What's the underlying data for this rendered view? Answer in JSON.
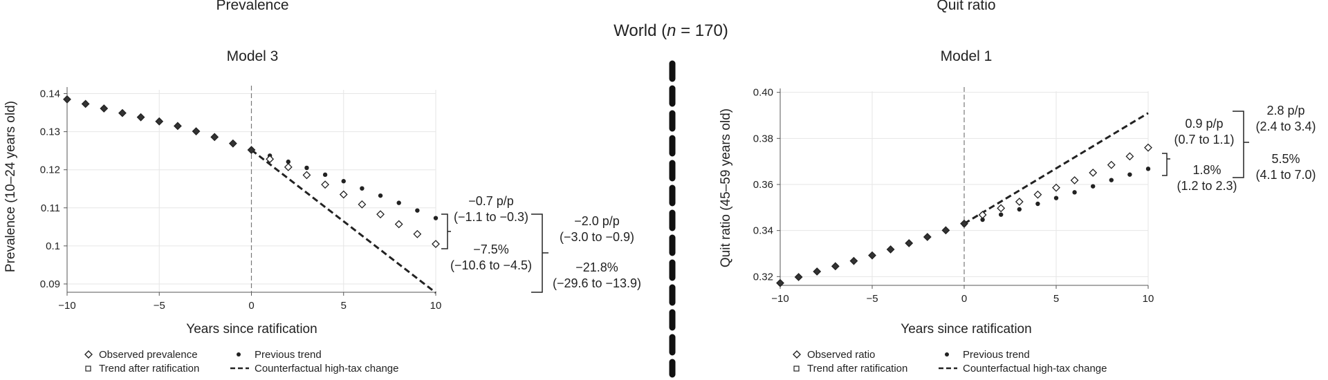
{
  "center_title": "World (n = 170)",
  "center_title_parts": [
    "World (",
    "n",
    " = 170)"
  ],
  "chart_data": [
    {
      "type": "scatter",
      "panel_title": "Prevalence",
      "model": "Model 3",
      "xlabel": "Years since ratification",
      "ylabel": "Prevalence (10–24 years old)",
      "xlim": [
        -10,
        10
      ],
      "ylim": [
        0.088,
        0.141
      ],
      "xticks": [
        -10,
        -5,
        0,
        5,
        10
      ],
      "xtick_labels": [
        "−10",
        "−5",
        "0",
        "5",
        "10"
      ],
      "yticks": [
        0.09,
        0.1,
        0.11,
        0.12,
        0.13,
        0.14
      ],
      "ytick_labels": [
        "0.09",
        "0.1",
        "0.11",
        "0.12",
        "0.13",
        "0.14"
      ],
      "grid": true,
      "legend_position": "bottom",
      "x": [
        -10,
        -9,
        -8,
        -7,
        -6,
        -5,
        -4,
        -3,
        -2,
        -1,
        0,
        1,
        2,
        3,
        4,
        5,
        6,
        7,
        8,
        9,
        10
      ],
      "series": [
        {
          "name": "Observed prevalence",
          "marker": "diamond",
          "values": [
            0.1385,
            0.1373,
            0.1361,
            0.1349,
            0.1338,
            0.1327,
            0.1315,
            0.1301,
            0.1286,
            0.1269,
            0.1252,
            0.1228,
            0.1207,
            0.1186,
            0.1161,
            0.1135,
            0.1109,
            0.1083,
            0.1057,
            0.1031,
            0.1005
          ]
        },
        {
          "name": "Trend after ratification",
          "marker": "square",
          "values": [
            0.1385,
            0.1373,
            0.1361,
            0.1349,
            0.1338,
            0.1327,
            0.1315,
            0.1301,
            0.1286,
            0.1269,
            0.1252,
            0.1228,
            0.1207,
            0.1186,
            0.1161,
            0.1135,
            0.1109,
            0.1083,
            0.1057,
            0.1031,
            0.1005
          ]
        },
        {
          "name": "Previous trend",
          "marker": "dot",
          "values": [
            null,
            null,
            null,
            null,
            null,
            null,
            null,
            null,
            null,
            null,
            0.125,
            0.1237,
            0.1221,
            0.1205,
            0.1187,
            0.117,
            0.1151,
            0.1132,
            0.1113,
            0.1093,
            0.1073
          ]
        },
        {
          "name": "Counterfactual high-tax change",
          "marker": "dashed-line",
          "x": [
            0,
            10
          ],
          "values": [
            0.1252,
            0.0877
          ]
        }
      ],
      "annotations": [
        {
          "line1": "−0.7 p/p",
          "line2": "(−1.1 to −0.3)"
        },
        {
          "line1": "−7.5%",
          "line2": "(−10.6 to −4.5)"
        },
        {
          "line1": "−2.0 p/p",
          "line2": "(−3.0 to −0.9)"
        },
        {
          "line1": "−21.8%",
          "line2": "(−29.6 to −13.9)"
        }
      ]
    },
    {
      "type": "scatter",
      "panel_title": "Quit ratio",
      "model": "Model 1",
      "xlabel": "Years since ratification",
      "ylabel": "Quit ratio (45–59 years old)",
      "xlim": [
        -10,
        10
      ],
      "ylim": [
        0.3165,
        0.4005
      ],
      "xticks": [
        -10,
        -5,
        0,
        5,
        10
      ],
      "xtick_labels": [
        "−10",
        "−5",
        "0",
        "5",
        "10"
      ],
      "yticks": [
        0.32,
        0.34,
        0.36,
        0.38,
        0.4
      ],
      "ytick_labels": [
        "0.32",
        "0.34",
        "0.36",
        "0.38",
        "0.40"
      ],
      "grid": true,
      "legend_position": "bottom",
      "x": [
        -10,
        -9,
        -8,
        -7,
        -6,
        -5,
        -4,
        -3,
        -2,
        -1,
        0,
        1,
        2,
        3,
        4,
        5,
        6,
        7,
        8,
        9,
        10
      ],
      "series": [
        {
          "name": "Observed ratio",
          "marker": "diamond",
          "values": [
            0.3172,
            0.3198,
            0.3222,
            0.3245,
            0.3268,
            0.3292,
            0.3318,
            0.3345,
            0.3372,
            0.3401,
            0.343,
            0.3468,
            0.3497,
            0.3525,
            0.3556,
            0.3586,
            0.3618,
            0.3651,
            0.3685,
            0.3722,
            0.376
          ]
        },
        {
          "name": "Trend after ratification",
          "marker": "square",
          "values": [
            0.3172,
            0.3198,
            0.3222,
            0.3245,
            0.3268,
            0.3292,
            0.3318,
            0.3345,
            0.3372,
            0.3401,
            0.343,
            0.3468,
            0.3497,
            0.3525,
            0.3556,
            0.3586,
            0.3618,
            0.3651,
            0.3685,
            0.3722,
            0.376
          ]
        },
        {
          "name": "Previous trend",
          "marker": "dot",
          "values": [
            null,
            null,
            null,
            null,
            null,
            null,
            null,
            null,
            null,
            null,
            0.3425,
            0.3447,
            0.3469,
            0.3492,
            0.3516,
            0.3541,
            0.3566,
            0.3592,
            0.3619,
            0.3643,
            0.3668
          ]
        },
        {
          "name": "Counterfactual high-tax change",
          "marker": "dashed-line",
          "x": [
            0,
            10
          ],
          "values": [
            0.343,
            0.391
          ]
        }
      ],
      "annotations": [
        {
          "line1": "0.9 p/p",
          "line2": "(0.7 to 1.1)"
        },
        {
          "line1": "1.8%",
          "line2": "(1.2 to 2.3)"
        },
        {
          "line1": "2.8 p/p",
          "line2": "(2.4 to 3.4)"
        },
        {
          "line1": "5.5%",
          "line2": "(4.1 to 7.0)"
        }
      ]
    }
  ],
  "colors": {
    "marker": "#222222",
    "grid": "#e6e6e6",
    "divider": "#111111",
    "axis": "#555555"
  }
}
